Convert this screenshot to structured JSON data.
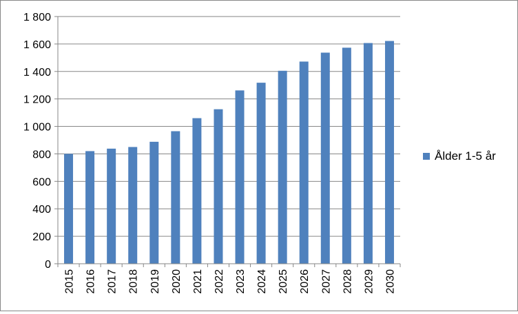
{
  "chart_data": {
    "type": "bar",
    "categories": [
      "2015",
      "2016",
      "2017",
      "2018",
      "2019",
      "2020",
      "2021",
      "2022",
      "2023",
      "2024",
      "2025",
      "2026",
      "2027",
      "2028",
      "2029",
      "2030"
    ],
    "series": [
      {
        "name": "Ålder 1-5 år",
        "color": "#4F81BD",
        "values": [
          800,
          820,
          838,
          850,
          888,
          965,
          1060,
          1125,
          1262,
          1318,
          1405,
          1472,
          1537,
          1573,
          1607,
          1622
        ]
      }
    ],
    "y_ticks": [
      "0",
      "200",
      "400",
      "600",
      "800",
      "1 000",
      "1 200",
      "1 400",
      "1 600",
      "1 800"
    ],
    "ylim": [
      0,
      1800
    ],
    "grid": true,
    "legend_position": "right",
    "title": "",
    "xlabel": "",
    "ylabel": ""
  }
}
